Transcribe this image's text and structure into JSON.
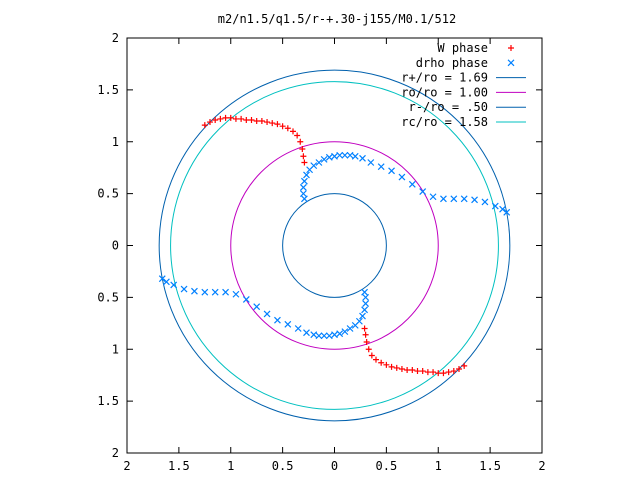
{
  "chart_data": {
    "type": "scatter",
    "title": "m2/n1.5/q1.5/r-+.30-j155/M0.1/512",
    "xlim": [
      -2,
      2
    ],
    "ylim": [
      -2,
      2
    ],
    "xticks": [
      {
        "v": -2,
        "label": "2"
      },
      {
        "v": -1.5,
        "label": "1.5"
      },
      {
        "v": -1,
        "label": "1"
      },
      {
        "v": -0.5,
        "label": "0.5"
      },
      {
        "v": 0,
        "label": "0"
      },
      {
        "v": 0.5,
        "label": "0.5"
      },
      {
        "v": 1,
        "label": "1"
      },
      {
        "v": 1.5,
        "label": "1.5"
      },
      {
        "v": 2,
        "label": "2"
      }
    ],
    "yticks": [
      {
        "v": 2,
        "label": "2"
      },
      {
        "v": 1.5,
        "label": "1.5"
      },
      {
        "v": 1,
        "label": "1"
      },
      {
        "v": 0.5,
        "label": "0.5"
      },
      {
        "v": 0,
        "label": "0"
      },
      {
        "v": -0.5,
        "label": "0.5"
      },
      {
        "v": -1,
        "label": "1"
      },
      {
        "v": -1.5,
        "label": "1.5"
      },
      {
        "v": -2,
        "label": "2"
      }
    ],
    "grid": false,
    "legend_position": "top-right",
    "circles": [
      {
        "name": "r+/ro = 1.69",
        "r": 1.69,
        "color": "#0060ad"
      },
      {
        "name": "ro/ro = 1.00",
        "r": 1.0,
        "color": "#c000c0"
      },
      {
        "name": "r-/ro = .50",
        "r": 0.5,
        "color": "#0060ad"
      },
      {
        "name": "rc/ro = 1.58",
        "r": 1.58,
        "color": "#00c0c0"
      }
    ],
    "series": [
      {
        "name": "W phase",
        "marker": "plus",
        "color": "#ff0000",
        "points": [
          [
            -1.25,
            1.16
          ],
          [
            -1.2,
            1.19
          ],
          [
            -1.15,
            1.21
          ],
          [
            -1.1,
            1.22
          ],
          [
            -1.05,
            1.23
          ],
          [
            -1.0,
            1.23
          ],
          [
            -0.95,
            1.22
          ],
          [
            -0.9,
            1.22
          ],
          [
            -0.85,
            1.21
          ],
          [
            -0.8,
            1.21
          ],
          [
            -0.75,
            1.2
          ],
          [
            -0.7,
            1.2
          ],
          [
            -0.65,
            1.19
          ],
          [
            -0.6,
            1.18
          ],
          [
            -0.55,
            1.17
          ],
          [
            -0.5,
            1.15
          ],
          [
            -0.45,
            1.13
          ],
          [
            -0.4,
            1.1
          ],
          [
            -0.36,
            1.06
          ],
          [
            -0.33,
            1.0
          ],
          [
            -0.31,
            0.93
          ],
          [
            -0.3,
            0.86
          ],
          [
            -0.29,
            0.8
          ],
          [
            1.25,
            -1.16
          ],
          [
            1.2,
            -1.19
          ],
          [
            1.15,
            -1.21
          ],
          [
            1.1,
            -1.22
          ],
          [
            1.05,
            -1.23
          ],
          [
            1.0,
            -1.23
          ],
          [
            0.95,
            -1.22
          ],
          [
            0.9,
            -1.22
          ],
          [
            0.85,
            -1.21
          ],
          [
            0.8,
            -1.21
          ],
          [
            0.75,
            -1.2
          ],
          [
            0.7,
            -1.2
          ],
          [
            0.65,
            -1.19
          ],
          [
            0.6,
            -1.18
          ],
          [
            0.55,
            -1.17
          ],
          [
            0.5,
            -1.15
          ],
          [
            0.45,
            -1.13
          ],
          [
            0.4,
            -1.1
          ],
          [
            0.36,
            -1.06
          ],
          [
            0.33,
            -1.0
          ],
          [
            0.31,
            -0.93
          ],
          [
            0.3,
            -0.86
          ],
          [
            0.29,
            -0.8
          ]
        ]
      },
      {
        "name": "drho phase",
        "marker": "cross",
        "color": "#0080ff",
        "points": [
          [
            -0.29,
            0.45
          ],
          [
            -0.3,
            0.5
          ],
          [
            -0.3,
            0.56
          ],
          [
            -0.29,
            0.62
          ],
          [
            -0.27,
            0.68
          ],
          [
            -0.24,
            0.73
          ],
          [
            -0.2,
            0.77
          ],
          [
            -0.15,
            0.8
          ],
          [
            -0.1,
            0.83
          ],
          [
            -0.05,
            0.85
          ],
          [
            0.0,
            0.86
          ],
          [
            0.05,
            0.87
          ],
          [
            0.1,
            0.87
          ],
          [
            0.15,
            0.87
          ],
          [
            0.2,
            0.86
          ],
          [
            0.27,
            0.84
          ],
          [
            0.35,
            0.8
          ],
          [
            0.45,
            0.76
          ],
          [
            0.55,
            0.72
          ],
          [
            0.65,
            0.66
          ],
          [
            0.75,
            0.59
          ],
          [
            0.85,
            0.52
          ],
          [
            0.95,
            0.47
          ],
          [
            1.05,
            0.45
          ],
          [
            1.15,
            0.45
          ],
          [
            1.25,
            0.45
          ],
          [
            1.35,
            0.44
          ],
          [
            1.45,
            0.42
          ],
          [
            1.55,
            0.38
          ],
          [
            1.62,
            0.35
          ],
          [
            1.66,
            0.32
          ],
          [
            0.29,
            -0.45
          ],
          [
            0.3,
            -0.5
          ],
          [
            0.3,
            -0.56
          ],
          [
            0.29,
            -0.62
          ],
          [
            0.27,
            -0.68
          ],
          [
            0.24,
            -0.73
          ],
          [
            0.2,
            -0.77
          ],
          [
            0.15,
            -0.8
          ],
          [
            0.1,
            -0.83
          ],
          [
            0.05,
            -0.85
          ],
          [
            0.0,
            -0.86
          ],
          [
            -0.05,
            -0.87
          ],
          [
            -0.1,
            -0.87
          ],
          [
            -0.15,
            -0.87
          ],
          [
            -0.2,
            -0.86
          ],
          [
            -0.27,
            -0.84
          ],
          [
            -0.35,
            -0.8
          ],
          [
            -0.45,
            -0.76
          ],
          [
            -0.55,
            -0.72
          ],
          [
            -0.65,
            -0.66
          ],
          [
            -0.75,
            -0.59
          ],
          [
            -0.85,
            -0.52
          ],
          [
            -0.95,
            -0.47
          ],
          [
            -1.05,
            -0.45
          ],
          [
            -1.15,
            -0.45
          ],
          [
            -1.25,
            -0.45
          ],
          [
            -1.35,
            -0.44
          ],
          [
            -1.45,
            -0.42
          ],
          [
            -1.55,
            -0.38
          ],
          [
            -1.62,
            -0.35
          ],
          [
            -1.66,
            -0.32
          ]
        ]
      }
    ]
  }
}
